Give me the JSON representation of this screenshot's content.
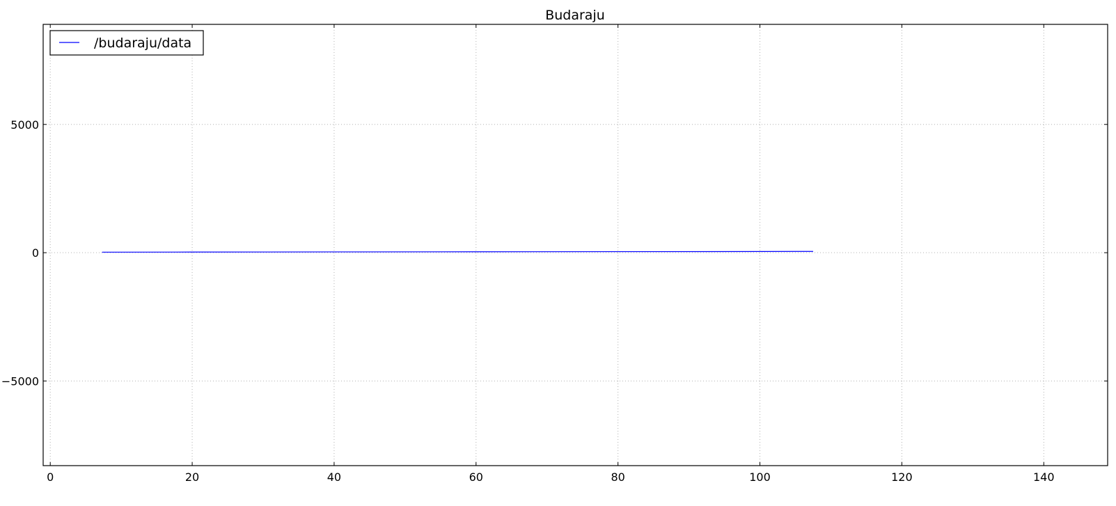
{
  "chart_data": {
    "type": "line",
    "title": "Budaraju",
    "xlabel": "",
    "ylabel": "",
    "xlim": [
      -1,
      149
    ],
    "ylim": [
      -8300,
      8900
    ],
    "xticks": [
      0,
      20,
      40,
      60,
      80,
      100,
      120,
      140
    ],
    "xtick_labels": [
      "0",
      "20",
      "40",
      "60",
      "80",
      "100",
      "120",
      "140"
    ],
    "yticks": [
      -5000,
      0,
      5000
    ],
    "ytick_labels": [
      "−5000",
      "0",
      "5000"
    ],
    "grid": true,
    "legend": {
      "position": "upper left",
      "entries": [
        "/budaraju/data"
      ]
    },
    "series": [
      {
        "name": "/budaraju/data",
        "color": "#0000ff",
        "x": [
          7.3,
          20,
          40,
          60,
          80,
          100,
          107.5
        ],
        "y": [
          20,
          25,
          30,
          35,
          40,
          45,
          50
        ]
      }
    ]
  }
}
